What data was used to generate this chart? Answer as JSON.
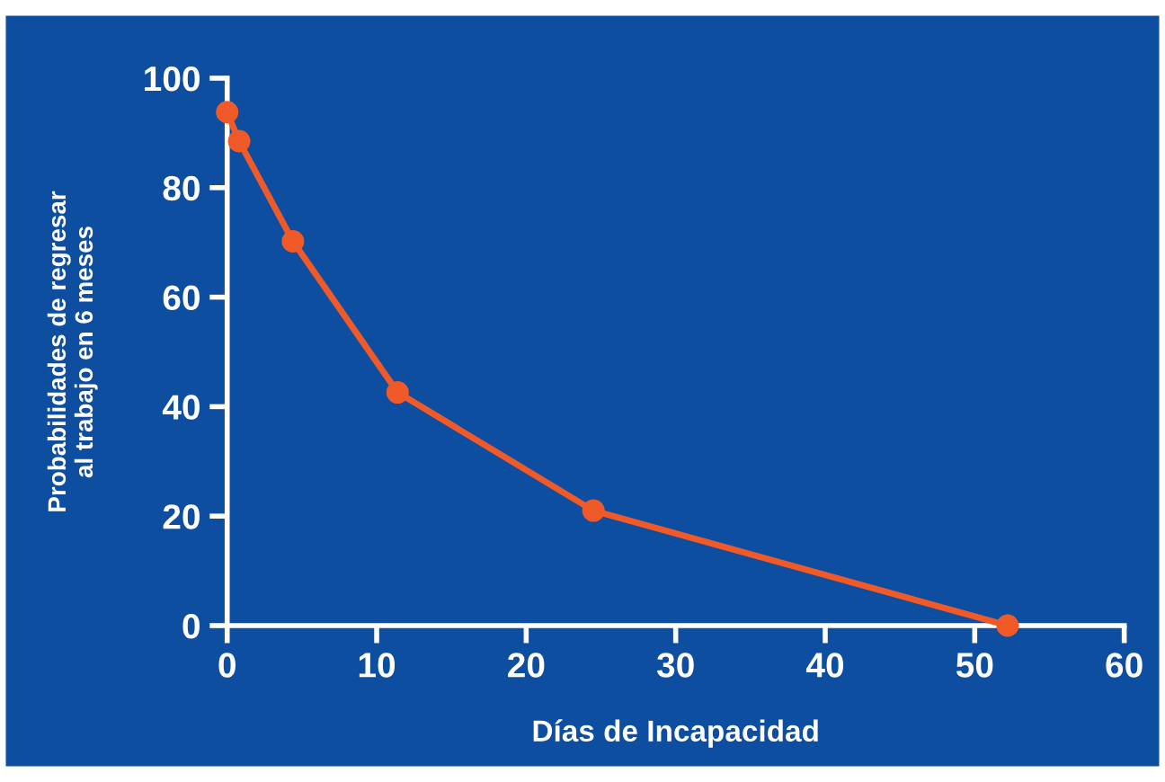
{
  "chart_data": {
    "type": "line",
    "xlabel": "Días de Incapacidad",
    "ylabel": "Probabilidades de regresar\nal trabajo en 6 meses",
    "x": [
      0,
      0.8,
      4.4,
      11.4,
      24.5,
      52.2
    ],
    "series": [
      {
        "color": "#f05a28",
        "values": [
          93.8,
          88.5,
          70.2,
          42.6,
          21,
          0
        ]
      }
    ],
    "xlim": [
      0,
      60
    ],
    "xticks": [
      0,
      10,
      20,
      30,
      40,
      50,
      60
    ],
    "ylim": [
      0,
      100
    ],
    "yticks": [
      0,
      20,
      40,
      60,
      80,
      100
    ],
    "grid": false,
    "legend": false,
    "marker": "circle",
    "line_style": "solid"
  }
}
